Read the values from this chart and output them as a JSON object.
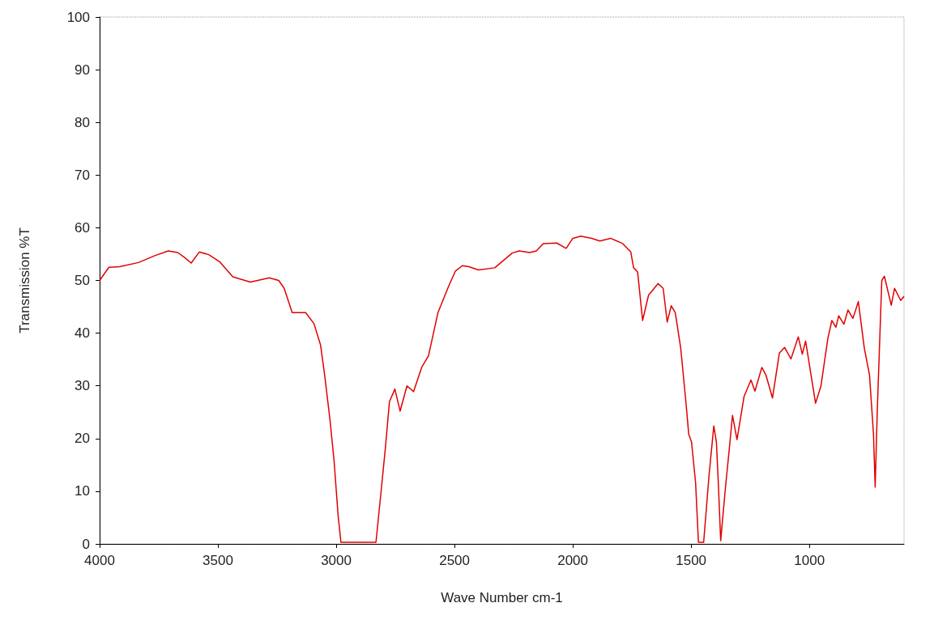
{
  "chart_data": {
    "type": "line",
    "xlabel": "Wave Number cm-1",
    "ylabel": "Transmission %T",
    "x": [
      4000,
      3961,
      3916,
      3836,
      3767,
      3710,
      3670,
      3642,
      3613,
      3579,
      3539,
      3494,
      3437,
      3363,
      3283,
      3243,
      3220,
      3186,
      3129,
      3094,
      3066,
      3049,
      3026,
      3009,
      2992,
      2980,
      2832,
      2809,
      2792,
      2775,
      2752,
      2730,
      2701,
      2673,
      2638,
      2610,
      2570,
      2524,
      2496,
      2467,
      2439,
      2399,
      2330,
      2256,
      2227,
      2182,
      2154,
      2125,
      2068,
      2028,
      2000,
      1966,
      1920,
      1886,
      1840,
      1789,
      1755,
      1743,
      1726,
      1705,
      1680,
      1640,
      1618,
      1601,
      1584,
      1567,
      1544,
      1521,
      1510,
      1498,
      1481,
      1469,
      1447,
      1424,
      1404,
      1393,
      1384,
      1375,
      1355,
      1338,
      1325,
      1306,
      1276,
      1247,
      1230,
      1201,
      1184,
      1156,
      1127,
      1105,
      1078,
      1047,
      1030,
      1016,
      974,
      951,
      922,
      905,
      888,
      876,
      854,
      837,
      816,
      793,
      768,
      746,
      729,
      722,
      713,
      694,
      683,
      654,
      640,
      614,
      600
    ],
    "values": [
      50.0,
      52.5,
      52.6,
      53.4,
      54.7,
      55.6,
      55.3,
      54.4,
      53.3,
      55.4,
      54.9,
      53.6,
      50.7,
      49.7,
      50.5,
      50.0,
      48.5,
      43.9,
      43.9,
      41.8,
      37.7,
      32.1,
      23.4,
      15.7,
      5.4,
      0.3,
      0.3,
      10.6,
      18.3,
      27.0,
      29.4,
      25.2,
      30.0,
      28.9,
      33.6,
      35.7,
      43.9,
      49.0,
      51.8,
      52.8,
      52.6,
      52.0,
      52.4,
      55.2,
      55.6,
      55.3,
      55.6,
      57.0,
      57.1,
      56.1,
      58.0,
      58.4,
      58.0,
      57.5,
      58.0,
      57.0,
      55.4,
      52.4,
      51.6,
      42.4,
      47.2,
      49.4,
      48.5,
      42.1,
      45.2,
      43.9,
      37.2,
      26.5,
      20.8,
      19.3,
      11.6,
      0.3,
      0.3,
      13.1,
      22.4,
      19.3,
      10.6,
      0.6,
      10.6,
      18.3,
      24.4,
      19.8,
      28.0,
      31.1,
      29.0,
      33.5,
      32.1,
      27.7,
      36.2,
      37.3,
      35.1,
      39.3,
      36.0,
      38.5,
      26.7,
      30.0,
      39.0,
      42.4,
      41.1,
      43.3,
      41.7,
      44.4,
      42.8,
      46.0,
      37.2,
      32.1,
      20.8,
      10.8,
      25.4,
      50.0,
      50.8,
      45.3,
      48.5,
      46.2,
      47.0
    ],
    "color": "#e00000",
    "xlim": [
      4000,
      600
    ],
    "xticks": [
      4000,
      3500,
      3000,
      2500,
      2000,
      1500,
      1000
    ],
    "ylim": [
      0,
      100
    ],
    "yticks": [
      0,
      10,
      20,
      30,
      40,
      50,
      60,
      70,
      80,
      90,
      100
    ],
    "grid": false,
    "marker": "none",
    "line_style": "solid"
  }
}
